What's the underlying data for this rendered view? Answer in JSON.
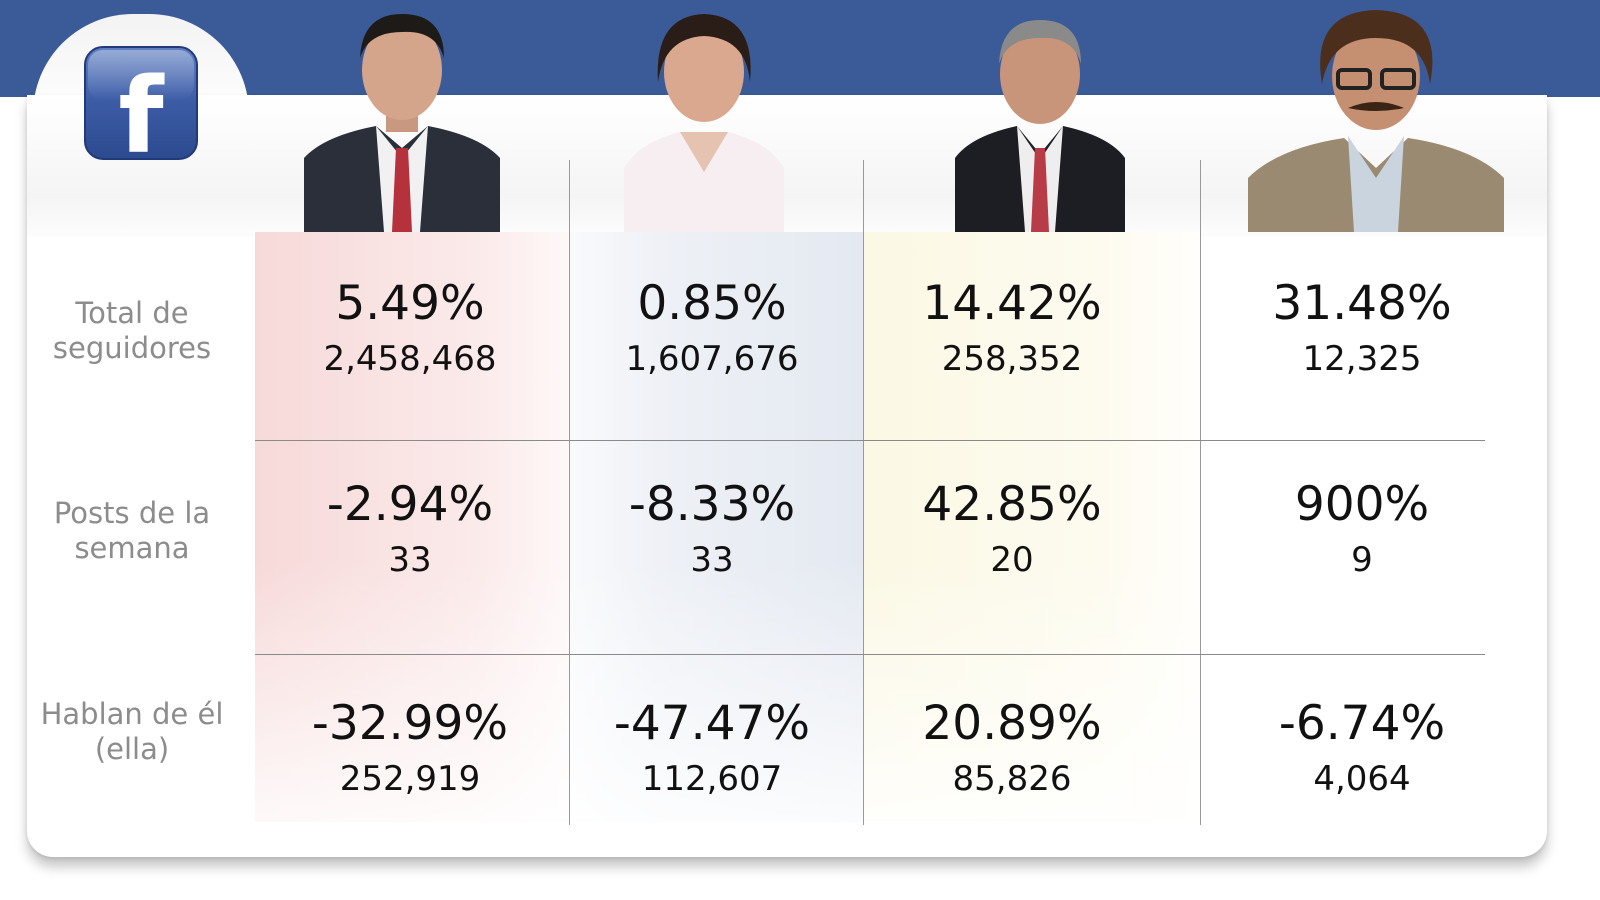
{
  "chart_data": {
    "type": "table",
    "row_labels": [
      "Total de seguidores",
      "Posts de la semana",
      "Hablan de él (ella)"
    ],
    "columns": [
      {
        "cells": [
          {
            "pct": "5.49%",
            "count": "2,458,468"
          },
          {
            "pct": "-2.94%",
            "count": "33"
          },
          {
            "pct": "-32.99%",
            "count": "252,919"
          }
        ]
      },
      {
        "cells": [
          {
            "pct": "0.85%",
            "count": "1,607,676"
          },
          {
            "pct": "-8.33%",
            "count": "33"
          },
          {
            "pct": "-47.47%",
            "count": "112,607"
          }
        ]
      },
      {
        "cells": [
          {
            "pct": "14.42%",
            "count": "258,352"
          },
          {
            "pct": "42.85%",
            "count": "20"
          },
          {
            "pct": "20.89%",
            "count": "85,826"
          }
        ]
      },
      {
        "cells": [
          {
            "pct": "31.48%",
            "count": "12,325"
          },
          {
            "pct": "900%",
            "count": "9"
          },
          {
            "pct": "-6.74%",
            "count": "4,064"
          }
        ]
      }
    ],
    "column_tints": [
      "#f7d9d9",
      "#e4e9f1",
      "#fbf8e4",
      "#ffffff"
    ],
    "header_color": "#3a5a98"
  },
  "logo": {
    "text": "f",
    "icon": "facebook-logo-icon"
  }
}
